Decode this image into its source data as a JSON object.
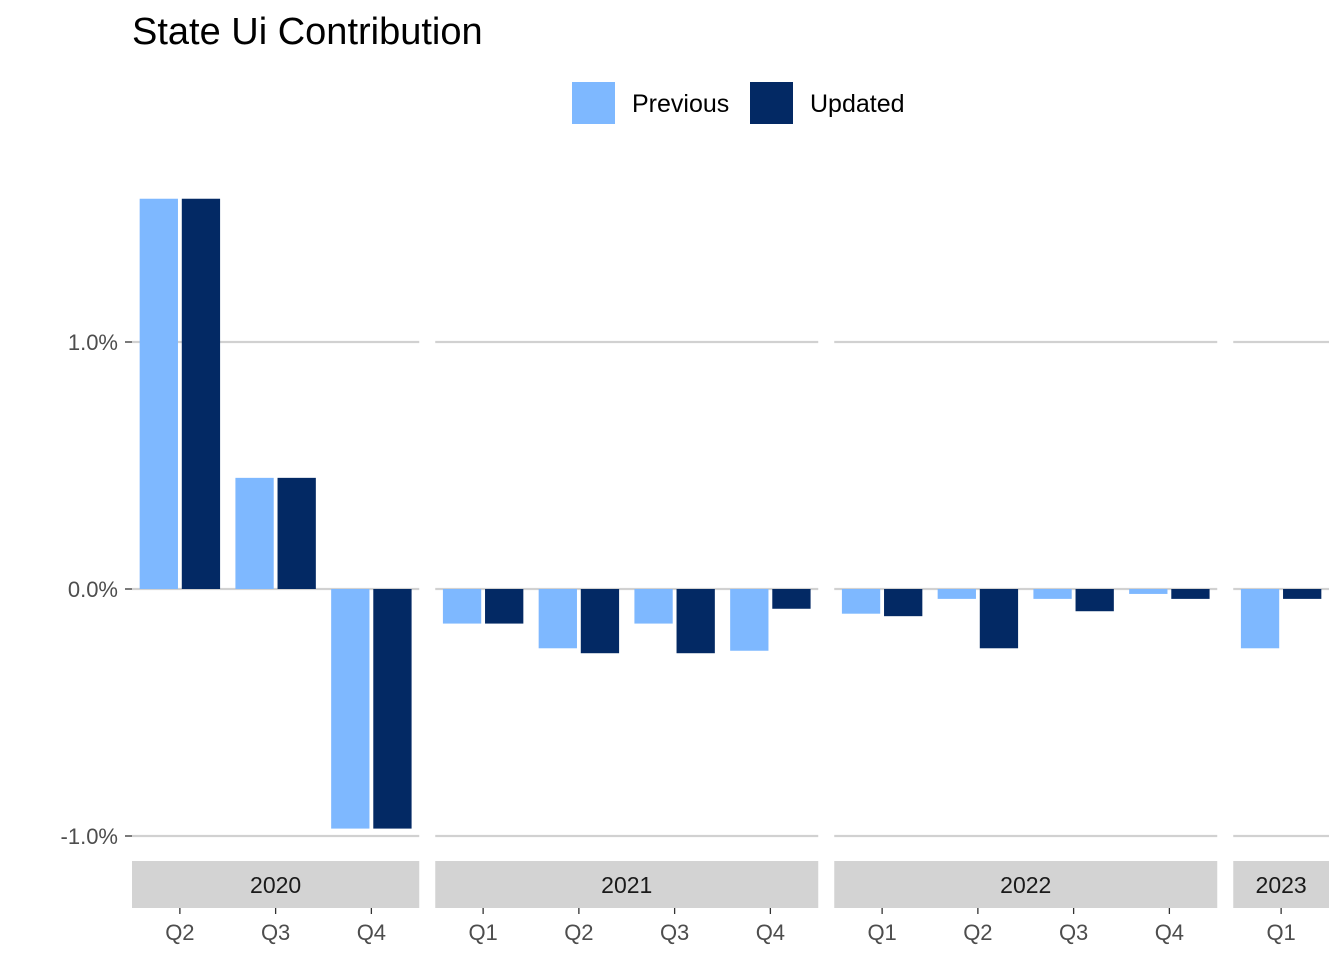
{
  "chart_data": {
    "type": "bar",
    "title": "State Ui Contribution",
    "xlabel": "",
    "ylabel": "",
    "ylim": [
      -1.2,
      1.85
    ],
    "y_ticks": [
      -1.0,
      0.0,
      1.0
    ],
    "y_tick_labels": [
      "-1.0%",
      "0.0%",
      "1.0%"
    ],
    "legend_position": "top",
    "grid": "horizontal major only",
    "colors": {
      "Previous": "#7eb8ff",
      "Updated": "#032964",
      "grid": "#d1d1d1",
      "strip": "#d3d3d3"
    },
    "facets": [
      {
        "label": "2020",
        "categories": [
          "Q2",
          "Q3",
          "Q4"
        ],
        "series": [
          {
            "name": "Previous",
            "values": [
              1.58,
              0.45,
              -0.97
            ]
          },
          {
            "name": "Updated",
            "values": [
              1.58,
              0.45,
              -0.97
            ]
          }
        ]
      },
      {
        "label": "2021",
        "categories": [
          "Q1",
          "Q2",
          "Q3",
          "Q4"
        ],
        "series": [
          {
            "name": "Previous",
            "values": [
              -0.14,
              -0.24,
              -0.14,
              -0.25
            ]
          },
          {
            "name": "Updated",
            "values": [
              -0.14,
              -0.26,
              -0.26,
              -0.08
            ]
          }
        ]
      },
      {
        "label": "2022",
        "categories": [
          "Q1",
          "Q2",
          "Q3",
          "Q4"
        ],
        "series": [
          {
            "name": "Previous",
            "values": [
              -0.1,
              -0.04,
              -0.04,
              -0.02
            ]
          },
          {
            "name": "Updated",
            "values": [
              -0.11,
              -0.24,
              -0.09,
              -0.04
            ]
          }
        ]
      },
      {
        "label": "2023",
        "categories": [
          "Q1"
        ],
        "series": [
          {
            "name": "Previous",
            "values": [
              -0.24
            ]
          },
          {
            "name": "Updated",
            "values": [
              -0.04
            ]
          }
        ]
      }
    ]
  }
}
